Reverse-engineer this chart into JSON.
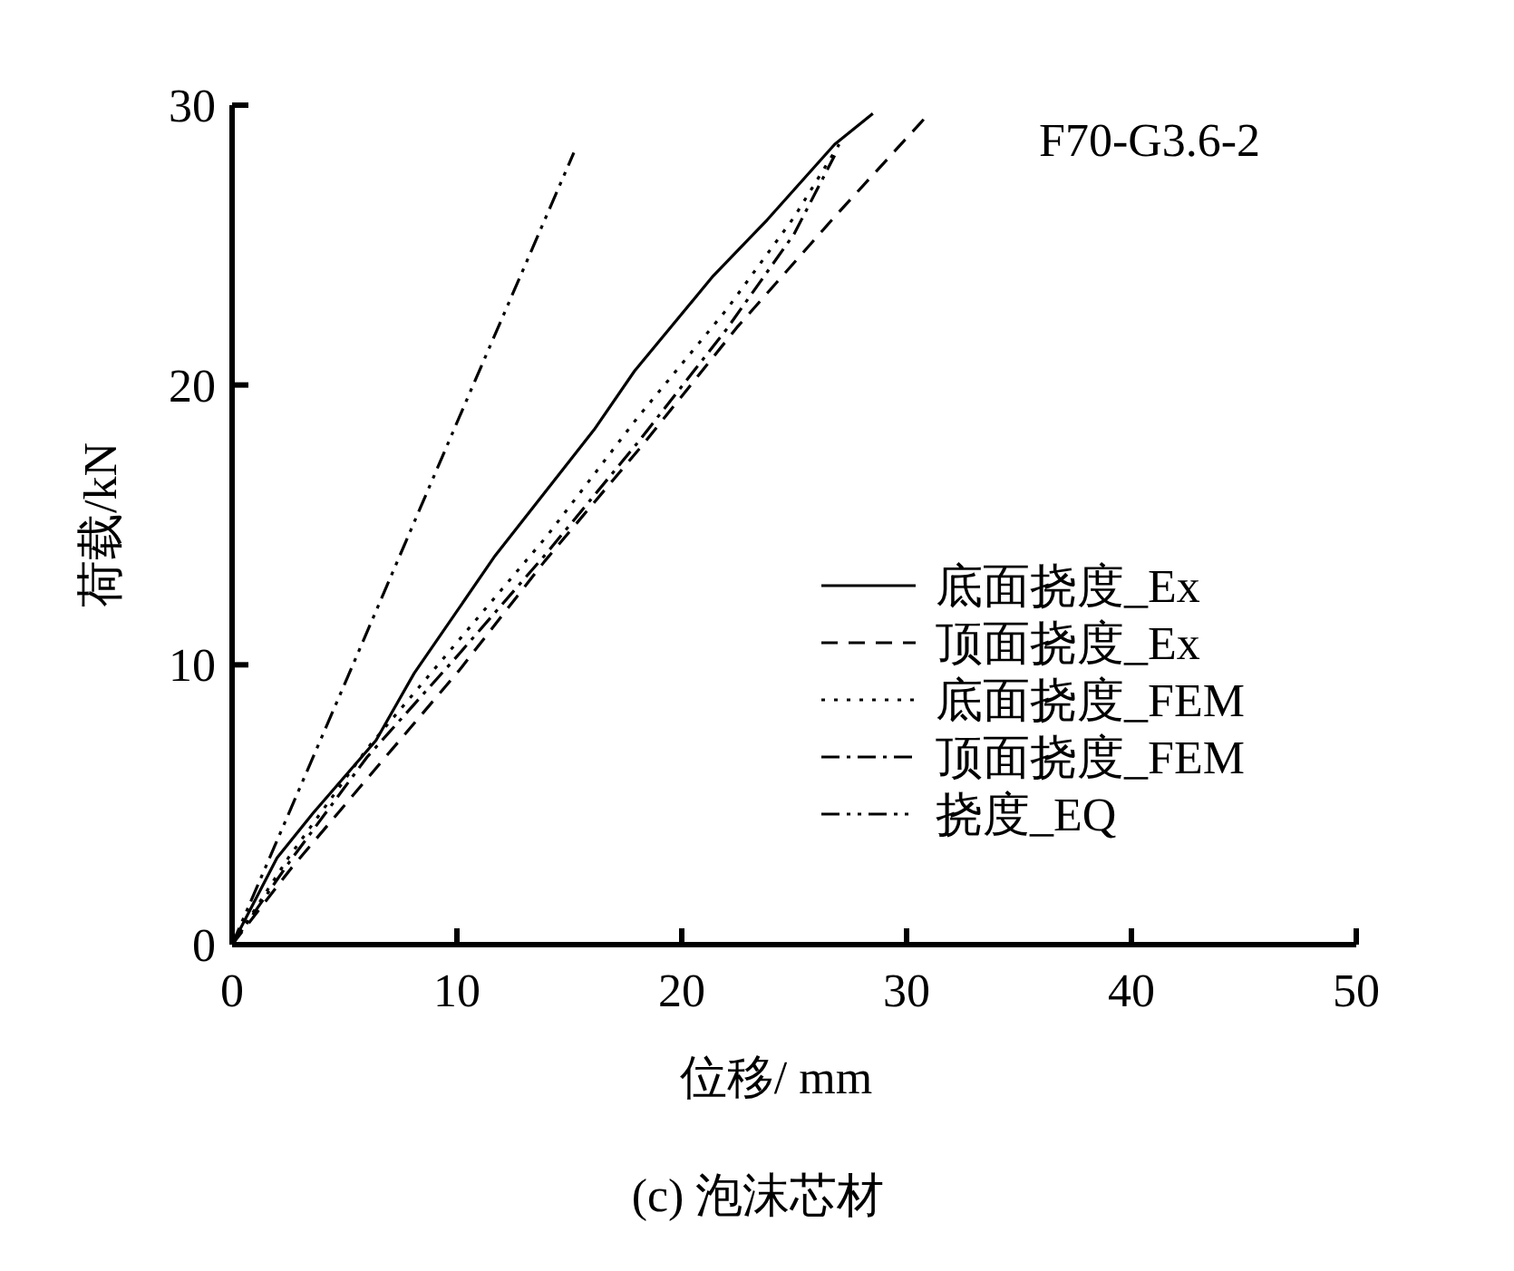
{
  "chart_data": {
    "type": "line",
    "xlabel": "位移/ mm",
    "ylabel": "荷载/kN",
    "annotations": [
      "F70-G3.6-2",
      "(c) 泡沫芯材"
    ],
    "xlim": [
      0,
      50
    ],
    "xticks": [
      0,
      10,
      20,
      30,
      40,
      50
    ],
    "ylim": [
      0,
      30
    ],
    "yticks": [
      0,
      10,
      20,
      30
    ],
    "grid": false,
    "legend": "right",
    "series": [
      {
        "name": "底面挠度_Ex",
        "color": "#000000",
        "line_style": "solid",
        "x": [
          0,
          2.0,
          3.6,
          6.4,
          8.1,
          11.7,
          16.1,
          17.9,
          21.4,
          23.8,
          26.8,
          28.5
        ],
        "values": [
          0,
          3.1,
          4.7,
          7.3,
          9.7,
          13.9,
          18.4,
          20.5,
          23.9,
          25.9,
          28.6,
          29.7
        ]
      },
      {
        "name": "顶面挠度_Ex",
        "color": "#000000",
        "line_style": "dashed",
        "x": [
          0,
          2.6,
          6.5,
          10.1,
          13.9,
          18.2,
          22.5,
          26.9,
          31.0
        ],
        "values": [
          0,
          2.7,
          6.4,
          9.8,
          13.7,
          17.8,
          22.1,
          26.1,
          29.7
        ]
      },
      {
        "name": "底面挠度_FEM",
        "color": "#000000",
        "line_style": "dotted",
        "x": [
          0,
          2.5,
          6,
          10,
          14,
          18,
          22,
          25,
          27
        ],
        "values": [
          0,
          3.1,
          7.0,
          10.8,
          14.6,
          18.8,
          22.7,
          26.0,
          28.6
        ]
      },
      {
        "name": "顶面挠度_FEM",
        "color": "#000000",
        "line_style": "dashdot",
        "x": [
          0,
          2.5,
          6,
          10,
          14,
          18,
          22,
          25,
          26.8
        ],
        "values": [
          0,
          2.9,
          6.7,
          10.3,
          14.0,
          17.9,
          22.0,
          25.4,
          28.2
        ]
      },
      {
        "name": "挠度_EQ",
        "color": "#000000",
        "line_style": "dashdotdot",
        "x": [
          0,
          5,
          10.4,
          15.2
        ],
        "values": [
          0,
          9.3,
          19.4,
          28.3
        ]
      }
    ]
  }
}
